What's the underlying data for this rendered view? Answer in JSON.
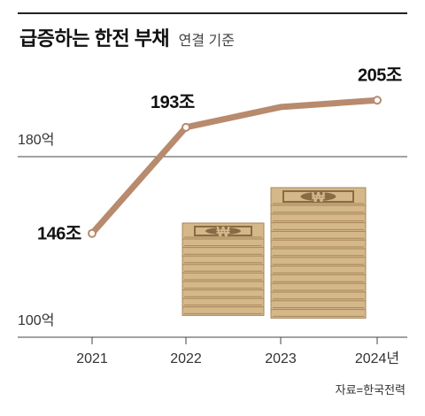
{
  "header": {
    "title": "급증하는 한전 부채",
    "subtitle": "연결 기준"
  },
  "source": "자료=한국전력",
  "colors": {
    "line": "#b88a6e",
    "grid": "#444444",
    "bill_face": "#d4b88a",
    "bill_edge": "#a8865a",
    "bill_dark": "#8a6a45"
  },
  "chart_data": {
    "type": "line",
    "x": [
      "2021",
      "2022",
      "2023",
      "2024"
    ],
    "x_tick_labels": [
      "2021",
      "2022",
      "2023",
      "2024년"
    ],
    "series": [
      {
        "values": [
          146,
          193,
          202,
          205
        ]
      }
    ],
    "data_labels": [
      "146조",
      "193조",
      "",
      "205조"
    ],
    "y_ticks": [
      {
        "value": 180,
        "label": "180억"
      },
      {
        "value": 100,
        "label": "100억"
      }
    ],
    "ylim": [
      100,
      215
    ],
    "grid": true,
    "legend": "none"
  }
}
